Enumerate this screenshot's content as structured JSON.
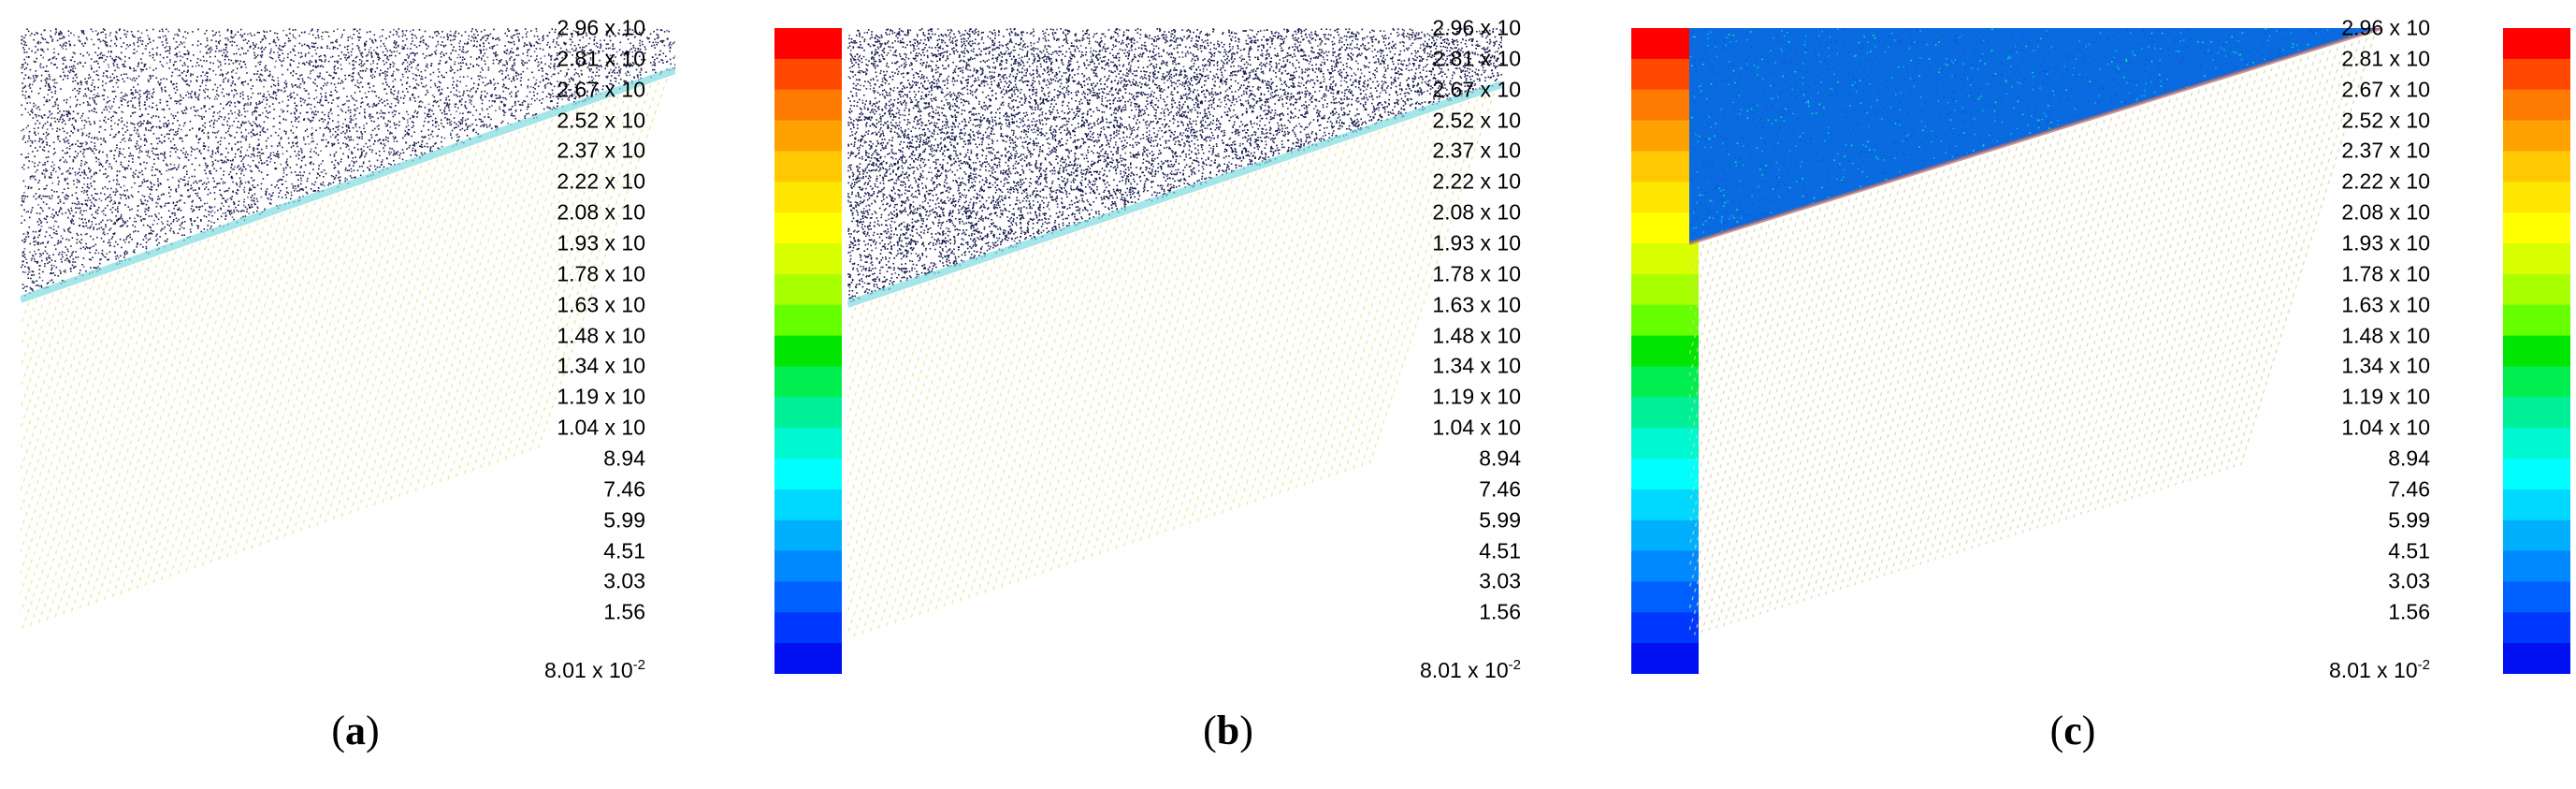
{
  "colorbar": {
    "labels": [
      "2.96 x 10",
      "2.81 x 10",
      "2.67 x 10",
      "2.52 x 10",
      "2.37 x 10",
      "2.22 x 10",
      "2.08 x 10",
      "1.93 x 10",
      "1.78 x 10",
      "1.63 x 10",
      "1.48 x 10",
      "1.34 x 10",
      "1.19 x 10",
      "1.04 x 10",
      "8.94",
      "7.46",
      "5.99",
      "4.51",
      "3.03",
      "1.56"
    ],
    "min_label_base": "8.01 x 10",
    "min_label_exp": "-2",
    "colors": [
      "#ff0000",
      "#ff4800",
      "#ff7a00",
      "#ffa200",
      "#ffc800",
      "#ffe600",
      "#ffff00",
      "#d8ff00",
      "#a8ff00",
      "#66ff00",
      "#00e600",
      "#00ee50",
      "#00f098",
      "#00f8d0",
      "#00ffff",
      "#00d8ff",
      "#00b0ff",
      "#0088ff",
      "#0060ff",
      "#0038ff",
      "#0010f0"
    ]
  },
  "panels": [
    {
      "id": "a",
      "caption_open": "(",
      "caption_letter": "a",
      "caption_close": ")"
    },
    {
      "id": "b",
      "caption_open": "(",
      "caption_letter": "b",
      "caption_close": ")"
    },
    {
      "id": "c",
      "caption_open": "(",
      "caption_letter": "c",
      "caption_close": ")"
    }
  ]
}
